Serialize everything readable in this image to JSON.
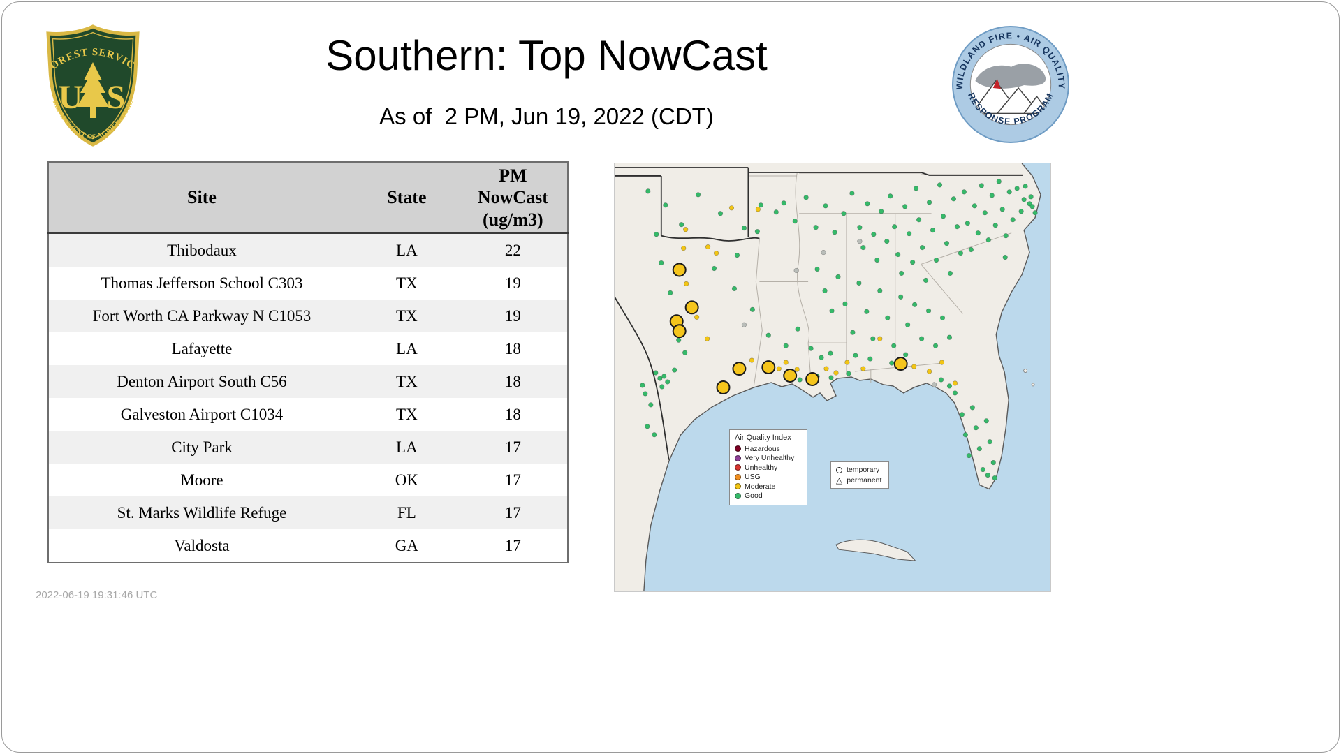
{
  "header": {
    "title": "Southern: Top NowCast",
    "subtitle": "As of  2 PM, Jun 19, 2022 (CDT)",
    "usfs_logo": {
      "arc_top": "FOREST SERVICE",
      "letter_u": "U",
      "letter_s": "S",
      "arc_bottom": "DEPARTMENT OF AGRICULTURE"
    },
    "program_logo": {
      "arc_top": "WILDLAND FIRE • AIR QUALITY",
      "arc_bottom": "RESPONSE PROGRAM"
    }
  },
  "table": {
    "columns": [
      "Site",
      "State",
      "PM NowCast (ug/m3)"
    ],
    "rows": [
      [
        "Thibodaux",
        "LA",
        "22"
      ],
      [
        "Thomas Jefferson School C303",
        "TX",
        "19"
      ],
      [
        "Fort Worth CA Parkway N C1053",
        "TX",
        "19"
      ],
      [
        "Lafayette",
        "LA",
        "18"
      ],
      [
        "Denton Airport South C56",
        "TX",
        "18"
      ],
      [
        "Galveston Airport C1034",
        "TX",
        "18"
      ],
      [
        "City Park",
        "LA",
        "17"
      ],
      [
        "Moore",
        "OK",
        "17"
      ],
      [
        "St. Marks Wildlife Refuge",
        "FL",
        "17"
      ],
      [
        "Valdosta",
        "GA",
        "17"
      ]
    ]
  },
  "map": {
    "legend": {
      "title": "Air Quality Index",
      "items": [
        {
          "label": "Hazardous",
          "color": "#7e0023"
        },
        {
          "label": "Very Unhealthy",
          "color": "#8f3f97"
        },
        {
          "label": "Unhealthy",
          "color": "#d7342f"
        },
        {
          "label": "USG",
          "color": "#ef8d1f"
        },
        {
          "label": "Moderate",
          "color": "#f2c514"
        },
        {
          "label": "Good",
          "color": "#35b969"
        }
      ]
    },
    "marker_legend": {
      "items": [
        {
          "label": "temporary",
          "shape": "circle"
        },
        {
          "label": "permanent",
          "shape": "triangle"
        }
      ]
    },
    "colors": {
      "water": "#bcd9ec",
      "land": "#f0ede7"
    },
    "point_colors": {
      "g": "#35b969",
      "m": "#f2c514",
      "M": "#f5c51c",
      "u": "#b9bdb9"
    },
    "points": [
      [
        186,
        232,
        "u"
      ],
      [
        261,
        154,
        "u"
      ],
      [
        459,
        318,
        "u"
      ],
      [
        352,
        112,
        "u"
      ],
      [
        300,
        128,
        "u"
      ],
      [
        67,
        143,
        "g"
      ],
      [
        80,
        186,
        "g"
      ],
      [
        60,
        102,
        "g"
      ],
      [
        96,
        88,
        "g"
      ],
      [
        73,
        60,
        "g"
      ],
      [
        48,
        40,
        "g"
      ],
      [
        120,
        45,
        "g"
      ],
      [
        152,
        72,
        "g"
      ],
      [
        186,
        93,
        "g"
      ],
      [
        210,
        60,
        "g"
      ],
      [
        92,
        254,
        "g"
      ],
      [
        101,
        272,
        "g"
      ],
      [
        86,
        297,
        "g"
      ],
      [
        71,
        306,
        "g"
      ],
      [
        76,
        314,
        "g"
      ],
      [
        65,
        309,
        "g"
      ],
      [
        59,
        301,
        "g"
      ],
      [
        68,
        321,
        "g"
      ],
      [
        44,
        331,
        "g"
      ],
      [
        52,
        347,
        "g"
      ],
      [
        47,
        378,
        "g"
      ],
      [
        57,
        390,
        "g"
      ],
      [
        40,
        319,
        "g"
      ],
      [
        143,
        151,
        "g"
      ],
      [
        176,
        132,
        "g"
      ],
      [
        205,
        98,
        "g"
      ],
      [
        232,
        70,
        "g"
      ],
      [
        172,
        180,
        "g"
      ],
      [
        198,
        210,
        "g"
      ],
      [
        221,
        247,
        "g"
      ],
      [
        246,
        262,
        "g"
      ],
      [
        263,
        238,
        "g"
      ],
      [
        282,
        266,
        "g"
      ],
      [
        297,
        279,
        "g"
      ],
      [
        310,
        273,
        "g"
      ],
      [
        243,
        57,
        "g"
      ],
      [
        259,
        83,
        "g"
      ],
      [
        275,
        49,
        "g"
      ],
      [
        289,
        92,
        "g"
      ],
      [
        303,
        61,
        "g"
      ],
      [
        316,
        99,
        "g"
      ],
      [
        329,
        72,
        "g"
      ],
      [
        341,
        43,
        "g"
      ],
      [
        352,
        92,
        "g"
      ],
      [
        357,
        121,
        "g"
      ],
      [
        363,
        58,
        "g"
      ],
      [
        372,
        102,
        "g"
      ],
      [
        377,
        139,
        "g"
      ],
      [
        383,
        69,
        "g"
      ],
      [
        391,
        112,
        "g"
      ],
      [
        396,
        47,
        "g"
      ],
      [
        402,
        91,
        "g"
      ],
      [
        407,
        131,
        "g"
      ],
      [
        412,
        158,
        "g"
      ],
      [
        417,
        62,
        "g"
      ],
      [
        423,
        101,
        "g"
      ],
      [
        428,
        142,
        "g"
      ],
      [
        433,
        36,
        "g"
      ],
      [
        437,
        81,
        "g"
      ],
      [
        442,
        121,
        "g"
      ],
      [
        447,
        168,
        "g"
      ],
      [
        452,
        56,
        "g"
      ],
      [
        457,
        96,
        "g"
      ],
      [
        462,
        139,
        "g"
      ],
      [
        467,
        31,
        "g"
      ],
      [
        472,
        76,
        "g"
      ],
      [
        477,
        115,
        "g"
      ],
      [
        482,
        158,
        "g"
      ],
      [
        487,
        51,
        "g"
      ],
      [
        492,
        91,
        "g"
      ],
      [
        497,
        129,
        "g"
      ],
      [
        502,
        41,
        "g"
      ],
      [
        507,
        86,
        "g"
      ],
      [
        512,
        124,
        "g"
      ],
      [
        517,
        61,
        "g"
      ],
      [
        522,
        100,
        "g"
      ],
      [
        527,
        32,
        "g"
      ],
      [
        532,
        71,
        "g"
      ],
      [
        537,
        110,
        "g"
      ],
      [
        542,
        46,
        "g"
      ],
      [
        547,
        89,
        "g"
      ],
      [
        552,
        26,
        "g"
      ],
      [
        557,
        66,
        "g"
      ],
      [
        562,
        104,
        "g"
      ],
      [
        567,
        41,
        "g"
      ],
      [
        572,
        81,
        "g"
      ],
      [
        578,
        36,
        "g"
      ],
      [
        584,
        69,
        "g"
      ],
      [
        588,
        52,
        "g"
      ],
      [
        590,
        33,
        "g"
      ],
      [
        596,
        58,
        "g"
      ],
      [
        600,
        62,
        "g"
      ],
      [
        598,
        48,
        "g"
      ],
      [
        604,
        71,
        "g"
      ],
      [
        561,
        135,
        "g"
      ],
      [
        291,
        152,
        "g"
      ],
      [
        302,
        183,
        "g"
      ],
      [
        312,
        212,
        "g"
      ],
      [
        321,
        163,
        "g"
      ],
      [
        331,
        202,
        "g"
      ],
      [
        342,
        243,
        "g"
      ],
      [
        351,
        172,
        "g"
      ],
      [
        362,
        213,
        "g"
      ],
      [
        371,
        252,
        "g"
      ],
      [
        381,
        183,
        "g"
      ],
      [
        392,
        222,
        "g"
      ],
      [
        401,
        262,
        "g"
      ],
      [
        411,
        192,
        "g"
      ],
      [
        421,
        232,
        "g"
      ],
      [
        431,
        203,
        "g"
      ],
      [
        441,
        252,
        "g"
      ],
      [
        451,
        212,
        "g"
      ],
      [
        461,
        262,
        "g"
      ],
      [
        471,
        222,
        "g"
      ],
      [
        481,
        250,
        "g"
      ],
      [
        346,
        276,
        "g"
      ],
      [
        367,
        281,
        "g"
      ],
      [
        398,
        287,
        "g"
      ],
      [
        418,
        275,
        "g"
      ],
      [
        266,
        311,
        "g"
      ],
      [
        291,
        306,
        "g"
      ],
      [
        311,
        308,
        "g"
      ],
      [
        336,
        302,
        "g"
      ],
      [
        489,
        330,
        "g"
      ],
      [
        499,
        361,
        "g"
      ],
      [
        504,
        390,
        "g"
      ],
      [
        509,
        420,
        "g"
      ],
      [
        514,
        351,
        "g"
      ],
      [
        519,
        380,
        "g"
      ],
      [
        524,
        410,
        "g"
      ],
      [
        529,
        440,
        "g"
      ],
      [
        534,
        370,
        "g"
      ],
      [
        539,
        400,
        "g"
      ],
      [
        544,
        430,
        "g"
      ],
      [
        481,
        320,
        "g"
      ],
      [
        469,
        311,
        "g"
      ],
      [
        546,
        452,
        "g"
      ],
      [
        536,
        448,
        "g"
      ],
      [
        134,
        120,
        "m"
      ],
      [
        99,
        122,
        "m"
      ],
      [
        146,
        129,
        "m"
      ],
      [
        168,
        64,
        "m"
      ],
      [
        103,
        173,
        "m"
      ],
      [
        118,
        221,
        "m"
      ],
      [
        133,
        252,
        "m"
      ],
      [
        197,
        283,
        "m"
      ],
      [
        236,
        295,
        "m"
      ],
      [
        262,
        296,
        "m"
      ],
      [
        246,
        286,
        "m"
      ],
      [
        304,
        295,
        "m"
      ],
      [
        318,
        301,
        "m"
      ],
      [
        334,
        286,
        "m"
      ],
      [
        357,
        295,
        "m"
      ],
      [
        381,
        252,
        "m"
      ],
      [
        430,
        292,
        "m"
      ],
      [
        452,
        299,
        "m"
      ],
      [
        470,
        286,
        "m"
      ],
      [
        206,
        66,
        "m"
      ],
      [
        102,
        95,
        "m"
      ],
      [
        489,
        316,
        "m"
      ],
      [
        93,
        153,
        "M"
      ],
      [
        111,
        207,
        "M"
      ],
      [
        89,
        227,
        "M"
      ],
      [
        93,
        241,
        "M"
      ],
      [
        156,
        322,
        "M"
      ],
      [
        179,
        295,
        "M"
      ],
      [
        221,
        293,
        "M"
      ],
      [
        252,
        305,
        "M"
      ],
      [
        284,
        310,
        "M"
      ],
      [
        411,
        288,
        "M"
      ]
    ]
  },
  "footer": {
    "timestamp": "2022-06-19 19:31:46 UTC"
  },
  "chart_data": {
    "type": "table",
    "title": "Southern: Top NowCast",
    "as_of": "2 PM, Jun 19, 2022 (CDT)",
    "columns": [
      "Site",
      "State",
      "PM NowCast (ug/m3)"
    ],
    "rows": [
      [
        "Thibodaux",
        "LA",
        22
      ],
      [
        "Thomas Jefferson School C303",
        "TX",
        19
      ],
      [
        "Fort Worth CA Parkway N C1053",
        "TX",
        19
      ],
      [
        "Lafayette",
        "LA",
        18
      ],
      [
        "Denton Airport South C56",
        "TX",
        18
      ],
      [
        "Galveston Airport C1034",
        "TX",
        18
      ],
      [
        "City Park",
        "LA",
        17
      ],
      [
        "Moore",
        "OK",
        17
      ],
      [
        "St. Marks Wildlife Refuge",
        "FL",
        17
      ],
      [
        "Valdosta",
        "GA",
        17
      ]
    ]
  }
}
